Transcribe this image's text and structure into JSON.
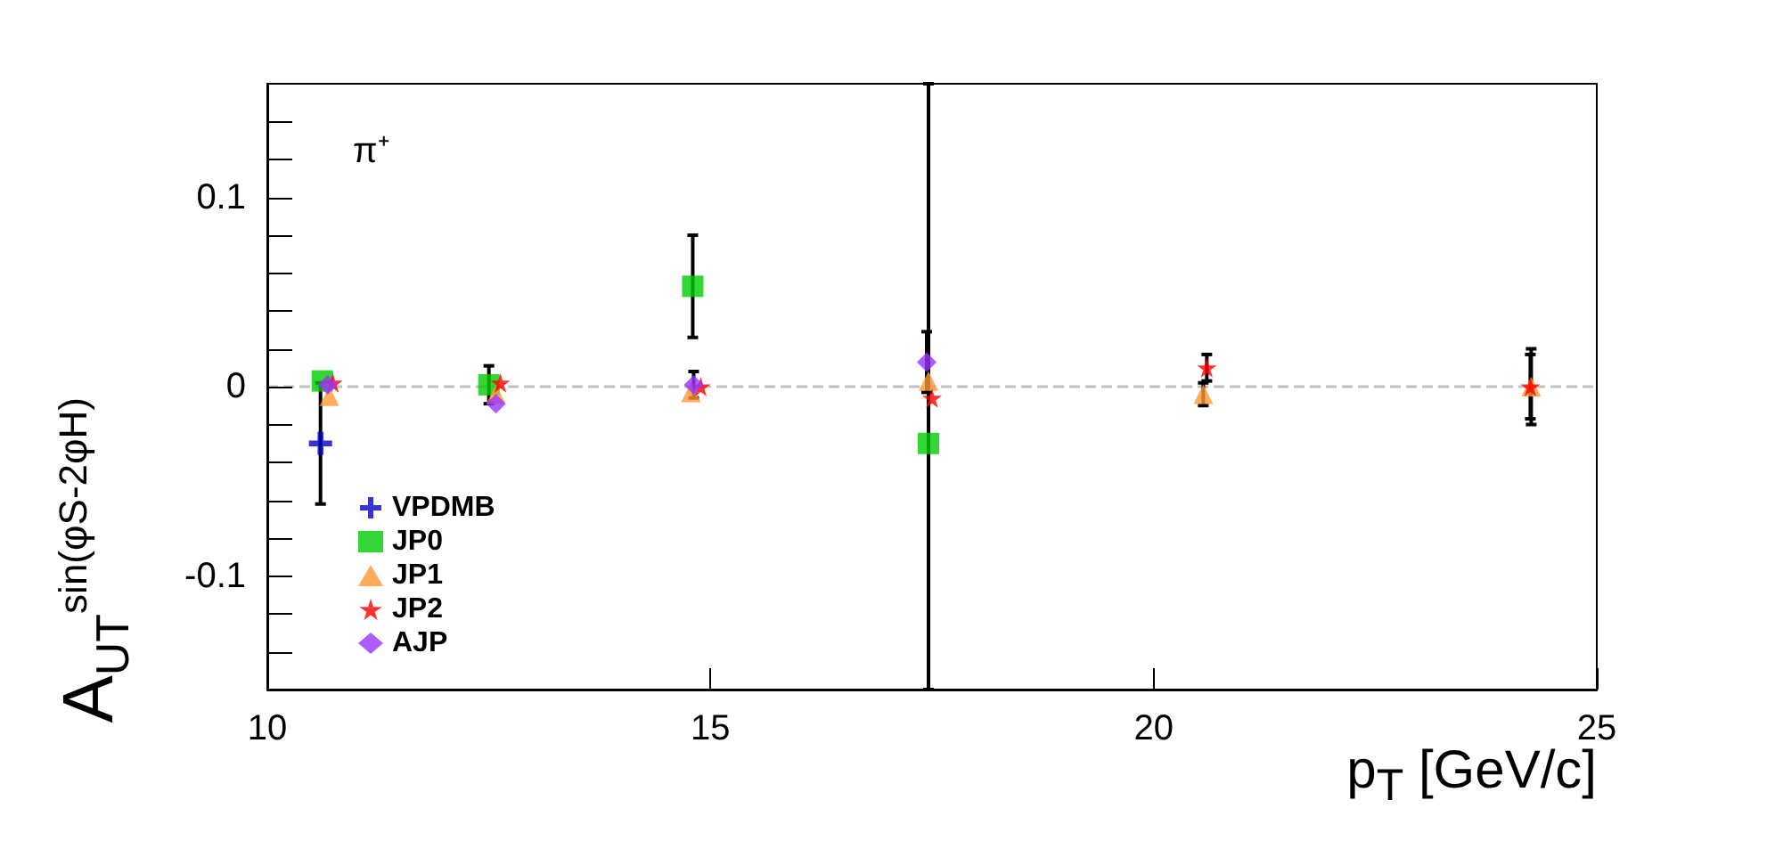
{
  "chart_data": {
    "type": "scatter",
    "xlabel": "p$_{T}$ [GeV/c]",
    "ylabel": "A$_{UT}$$^{sin(φS-2φH)}$",
    "annotations": [
      "π⁺"
    ],
    "xlim": [
      10,
      25
    ],
    "xticks": [
      10,
      15,
      20,
      25
    ],
    "ylim": [
      -0.16,
      0.16
    ],
    "yticks": [
      {
        "value": -0.14,
        "label": null
      },
      {
        "value": -0.12,
        "label": null
      },
      -0.1,
      {
        "value": -0.08,
        "label": null
      },
      {
        "value": -0.06,
        "label": null
      },
      {
        "value": -0.04,
        "label": null
      },
      {
        "value": -0.02,
        "label": null
      },
      0,
      {
        "value": 0.02,
        "label": null
      },
      {
        "value": 0.04,
        "label": null
      },
      {
        "value": 0.06,
        "label": null
      },
      {
        "value": 0.08,
        "label": null
      },
      0.1,
      {
        "value": 0.12,
        "label": null
      },
      {
        "value": 0.14,
        "label": null
      }
    ],
    "grid": false,
    "legend": "bottom left",
    "ref_lines": [
      {
        "axis": "y",
        "value": 0,
        "label": null,
        "color": "#c0c0c0",
        "line_style": "dashed"
      }
    ],
    "series": [
      {
        "name": "VPDMB",
        "color": "#0000cc",
        "marker": "cross",
        "x": [
          10.6
        ],
        "values": [
          -0.03
        ],
        "errors": [
          0.032
        ]
      },
      {
        "name": "JP0",
        "color": "#00cc00",
        "marker": "square",
        "x": [
          10.62,
          12.5,
          14.8,
          17.46
        ],
        "values": [
          0.003,
          0.001,
          0.053,
          -0.03
        ],
        "errors": [
          null,
          0.01,
          0.027,
          [
            -0.16,
            0.16
          ]
        ]
      },
      {
        "name": "JP1",
        "color": "#ff9933",
        "marker": "triangle",
        "x": [
          10.7,
          12.58,
          14.78,
          17.46,
          20.56,
          24.26
        ],
        "values": [
          -0.005,
          -0.004,
          -0.003,
          0.003,
          -0.004,
          0
        ],
        "errors": [
          null,
          null,
          null,
          null,
          0.006,
          0.02
        ]
      },
      {
        "name": "JP2",
        "color": "#ff0000",
        "marker": "star",
        "x": [
          10.74,
          12.63,
          14.89,
          17.5,
          20.6,
          24.25
        ],
        "values": [
          0.002,
          0.002,
          0,
          -0.006,
          0.01,
          0
        ],
        "errors": [
          null,
          null,
          null,
          null,
          0.007,
          0.017
        ]
      },
      {
        "name": "AJP",
        "color": "#9933ff",
        "marker": "diamond",
        "x": [
          10.68,
          12.58,
          14.81,
          17.44
        ],
        "values": [
          0.001,
          -0.009,
          0.001,
          0.013
        ],
        "errors": [
          null,
          null,
          0.007,
          0.016
        ]
      }
    ]
  }
}
